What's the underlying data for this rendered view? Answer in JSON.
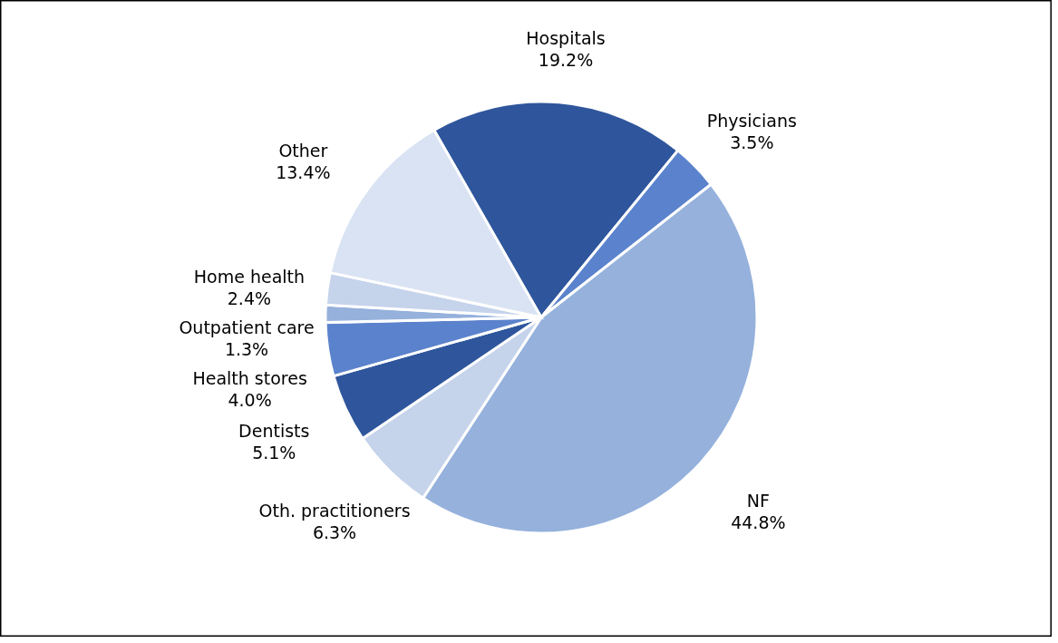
{
  "chart_data": {
    "type": "pie",
    "categories": [
      "Hospitals",
      "Physicians",
      "NF",
      "Oth. practitioners",
      "Dentists",
      "Health stores",
      "Outpatient  care",
      "Home health",
      "Other"
    ],
    "values": [
      19.2,
      3.5,
      44.8,
      6.3,
      5.1,
      4.0,
      1.3,
      2.4,
      13.4
    ],
    "colors": [
      "#2f569c",
      "#5b82cc",
      "#95b1dc",
      "#c5d3eb",
      "#2f569c",
      "#5b82cc",
      "#95b1dc",
      "#c5d3eb",
      "#dae3f3"
    ],
    "value_labels": [
      "19.2%",
      "3.5%",
      "44.8%",
      "6.3%",
      "5.1%",
      "4.0%",
      "1.3%",
      "2.4%",
      "13.4%"
    ]
  }
}
